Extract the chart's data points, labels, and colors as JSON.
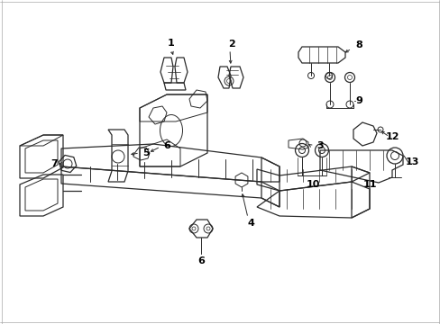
{
  "bg_color": "#ffffff",
  "line_color": "#2a2a2a",
  "label_color": "#000000",
  "fig_width": 4.89,
  "fig_height": 3.6,
  "dpi": 100,
  "border_color": "#cccccc"
}
